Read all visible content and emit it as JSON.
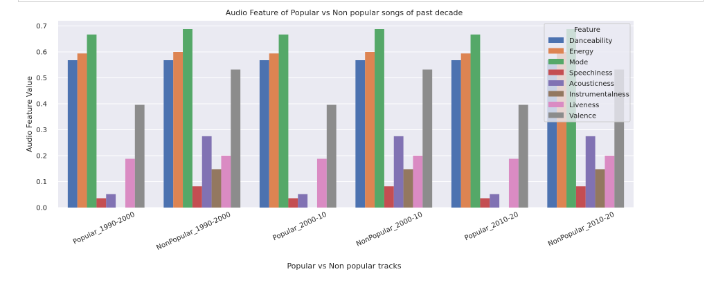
{
  "chart_data": {
    "type": "bar",
    "title": "Audio Feature of Popular vs Non popular songs of past decade",
    "xlabel": "Popular vs Non popular tracks",
    "ylabel": "Audio Feature Value",
    "ylim": [
      0,
      0.72
    ],
    "yticks": [
      "0.0",
      "0.1",
      "0.2",
      "0.3",
      "0.4",
      "0.5",
      "0.6",
      "0.7"
    ],
    "grid": true,
    "legend_title": "Feature",
    "legend_position": "top-right",
    "categories": [
      "Popular_1990-2000",
      "NonPopular_1990-2000",
      "Popular_2000-10",
      "NonPopular_2000-10",
      "Popular_2010-20",
      "NonPopular_2010-20"
    ],
    "series": [
      {
        "name": "Danceability",
        "color": "#4c72b0",
        "values": [
          0.568,
          0.568,
          0.568,
          0.568,
          0.568,
          0.568
        ]
      },
      {
        "name": "Energy",
        "color": "#dd8452",
        "values": [
          0.594,
          0.6,
          0.594,
          0.6,
          0.594,
          0.6
        ]
      },
      {
        "name": "Mode",
        "color": "#55a868",
        "values": [
          0.667,
          0.688,
          0.667,
          0.688,
          0.667,
          0.688
        ]
      },
      {
        "name": "Speechiness",
        "color": "#c44e52",
        "values": [
          0.036,
          0.082,
          0.036,
          0.082,
          0.036,
          0.082
        ]
      },
      {
        "name": "Acousticness",
        "color": "#8172b3",
        "values": [
          0.052,
          0.275,
          0.052,
          0.275,
          0.052,
          0.275
        ]
      },
      {
        "name": "Instrumentalness",
        "color": "#937860",
        "values": [
          0.0,
          0.148,
          0.0,
          0.148,
          0.0,
          0.148
        ]
      },
      {
        "name": "Liveness",
        "color": "#da8bc3",
        "values": [
          0.188,
          0.2,
          0.188,
          0.2,
          0.188,
          0.2
        ]
      },
      {
        "name": "Valence",
        "color": "#8c8c8c",
        "values": [
          0.396,
          0.532,
          0.396,
          0.532,
          0.396,
          0.532
        ]
      }
    ]
  }
}
